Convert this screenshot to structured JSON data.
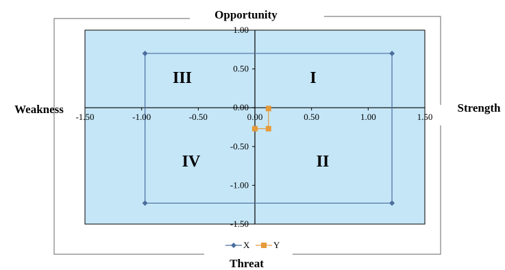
{
  "chart_data": {
    "type": "scatter",
    "side_labels": {
      "top": "Opportunity",
      "bottom": "Threat",
      "left": "Weakness",
      "right": "Strength"
    },
    "quadrant_labels": {
      "top_right": "I",
      "bottom_right": "II",
      "top_left": "III",
      "bottom_left": "IV"
    },
    "xlim": [
      -1.5,
      1.5
    ],
    "ylim": [
      -1.5,
      1.0
    ],
    "x_ticks": [
      -1.5,
      -1.0,
      -0.5,
      0.0,
      0.5,
      1.0,
      1.5
    ],
    "x_tick_labels": [
      "-1.50",
      "-1.00",
      "-0.50",
      "0.00",
      "0.50",
      "1.00",
      "1.50"
    ],
    "y_ticks": [
      1.0,
      0.5,
      0.0,
      -0.5,
      -1.0,
      -1.5
    ],
    "y_tick_labels": [
      "1.00",
      "0.50",
      "0.00",
      "-0.50",
      "-1.00",
      "-1.50"
    ],
    "grid": false,
    "legend_position": "bottom",
    "series": [
      {
        "name": "X",
        "color": "#4a6e9e",
        "marker": "diamond",
        "points": [
          [
            -0.97,
            0.7
          ],
          [
            1.21,
            0.7
          ],
          [
            1.21,
            -1.23
          ],
          [
            -0.97,
            -1.23
          ],
          [
            -0.97,
            0.7
          ]
        ]
      },
      {
        "name": "Y",
        "color": "#e69a3a",
        "marker": "square",
        "points": [
          [
            0.12,
            -0.01
          ],
          [
            0.12,
            -0.27
          ],
          [
            0.0,
            -0.27
          ]
        ]
      }
    ],
    "plot_background": "#c5e6f7"
  }
}
